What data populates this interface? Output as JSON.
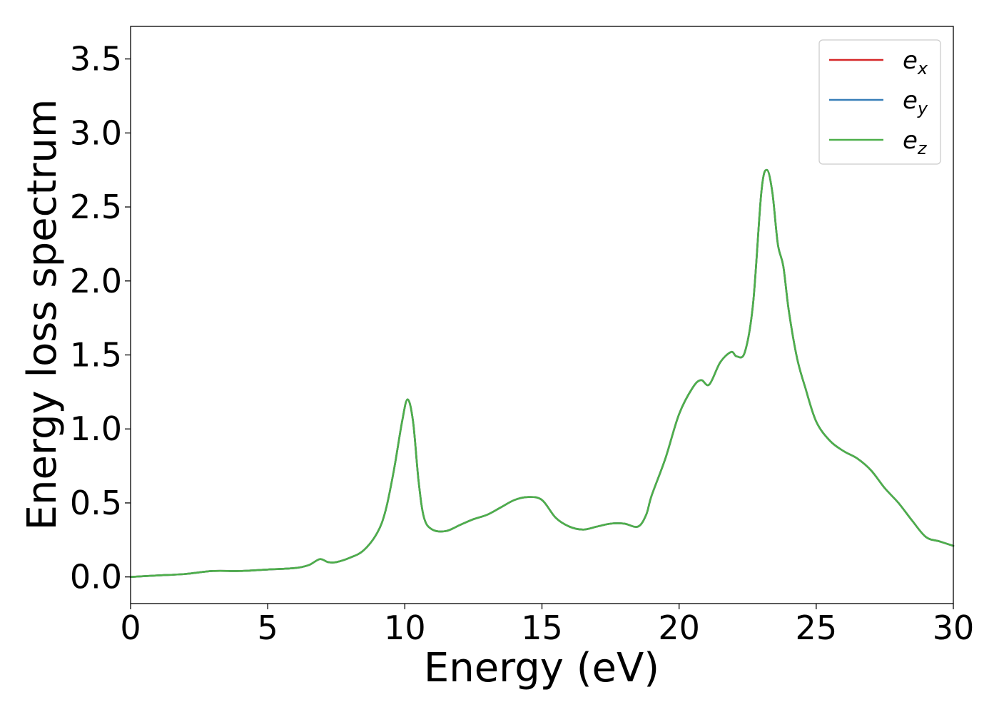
{
  "chart_data": {
    "type": "line",
    "title": "",
    "xlabel": "Energy (eV)",
    "ylabel": "Energy loss spectrum",
    "xlim": [
      0,
      30
    ],
    "ylim": [
      -0.18,
      3.72
    ],
    "xticks": [
      0,
      5,
      10,
      15,
      20,
      25,
      30
    ],
    "xtick_labels": [
      "0",
      "5",
      "10",
      "15",
      "20",
      "25",
      "30"
    ],
    "yticks": [
      0.0,
      0.5,
      1.0,
      1.5,
      2.0,
      2.5,
      3.0,
      3.5
    ],
    "ytick_labels": [
      "0.0",
      "0.5",
      "1.0",
      "1.5",
      "2.0",
      "2.5",
      "3.0",
      "3.5"
    ],
    "grid": false,
    "legend_position": "top-right",
    "x": [
      0,
      1,
      2,
      3,
      4,
      5,
      6,
      6.5,
      6.9,
      7.2,
      7.5,
      8,
      8.5,
      9,
      9.3,
      9.6,
      9.9,
      10.1,
      10.3,
      10.5,
      10.7,
      11,
      11.5,
      12,
      12.5,
      13,
      13.5,
      14,
      14.5,
      15,
      15.5,
      16,
      16.5,
      17,
      17.5,
      18,
      18.5,
      18.8,
      19,
      19.5,
      20,
      20.5,
      20.8,
      21.1,
      21.5,
      21.9,
      22.1,
      22.4,
      22.7,
      23,
      23.2,
      23.4,
      23.6,
      23.8,
      24,
      24.3,
      24.6,
      25,
      25.5,
      26,
      26.5,
      27,
      27.5,
      28,
      28.5,
      29,
      29.5,
      30
    ],
    "series": [
      {
        "name": "e_x",
        "label_base": "e",
        "label_sub": "x",
        "color": "#d62728",
        "y": [
          0.0,
          0.01,
          0.02,
          0.04,
          0.04,
          0.05,
          0.06,
          0.08,
          0.12,
          0.1,
          0.1,
          0.13,
          0.18,
          0.3,
          0.45,
          0.72,
          1.05,
          1.2,
          1.05,
          0.65,
          0.4,
          0.32,
          0.31,
          0.35,
          0.39,
          0.42,
          0.47,
          0.52,
          0.54,
          0.52,
          0.4,
          0.34,
          0.32,
          0.34,
          0.36,
          0.36,
          0.34,
          0.42,
          0.55,
          0.8,
          1.1,
          1.28,
          1.33,
          1.3,
          1.45,
          1.52,
          1.49,
          1.52,
          1.85,
          2.6,
          2.75,
          2.6,
          2.25,
          2.1,
          1.8,
          1.48,
          1.28,
          1.05,
          0.92,
          0.85,
          0.8,
          0.72,
          0.6,
          0.5,
          0.38,
          0.27,
          0.24,
          0.21
        ]
      },
      {
        "name": "e_y",
        "label_base": "e",
        "label_sub": "y",
        "color": "#377eb8",
        "y": [
          0.0,
          0.01,
          0.02,
          0.04,
          0.04,
          0.05,
          0.06,
          0.08,
          0.12,
          0.1,
          0.1,
          0.13,
          0.18,
          0.3,
          0.45,
          0.72,
          1.05,
          1.2,
          1.05,
          0.65,
          0.4,
          0.32,
          0.31,
          0.35,
          0.39,
          0.42,
          0.47,
          0.52,
          0.54,
          0.52,
          0.4,
          0.34,
          0.32,
          0.34,
          0.36,
          0.36,
          0.34,
          0.42,
          0.55,
          0.8,
          1.1,
          1.28,
          1.33,
          1.3,
          1.45,
          1.52,
          1.49,
          1.52,
          1.85,
          2.6,
          2.75,
          2.6,
          2.25,
          2.1,
          1.8,
          1.48,
          1.28,
          1.05,
          0.92,
          0.85,
          0.8,
          0.72,
          0.6,
          0.5,
          0.38,
          0.27,
          0.24,
          0.21
        ]
      },
      {
        "name": "e_z",
        "label_base": "e",
        "label_sub": "z",
        "color": "#4daf4a",
        "y": [
          0.0,
          0.01,
          0.02,
          0.04,
          0.04,
          0.05,
          0.06,
          0.08,
          0.12,
          0.1,
          0.1,
          0.13,
          0.18,
          0.3,
          0.45,
          0.72,
          1.05,
          1.2,
          1.05,
          0.65,
          0.4,
          0.32,
          0.31,
          0.35,
          0.39,
          0.42,
          0.47,
          0.52,
          0.54,
          0.52,
          0.4,
          0.34,
          0.32,
          0.34,
          0.36,
          0.36,
          0.34,
          0.42,
          0.55,
          0.8,
          1.1,
          1.28,
          1.33,
          1.3,
          1.45,
          1.52,
          1.49,
          1.52,
          1.85,
          2.6,
          2.75,
          2.6,
          2.25,
          2.1,
          1.8,
          1.48,
          1.28,
          1.05,
          0.92,
          0.85,
          0.8,
          0.72,
          0.6,
          0.5,
          0.38,
          0.27,
          0.24,
          0.21
        ]
      }
    ]
  }
}
